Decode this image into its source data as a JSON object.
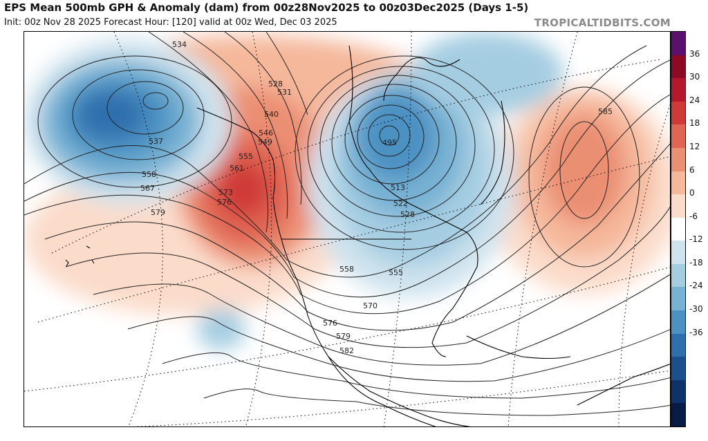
{
  "header": {
    "title": "EPS Mean 500mb GPH & Anomaly (dam) from 00z28Nov2025 to 00z03Dec2025 (Days 1-5)",
    "subtitle": "Init: 00z Nov 28 2025   Forecast Hour: [120]   valid at 00z Wed, Dec 03 2025",
    "brand": "TROPICALTIDBITS.COM"
  },
  "colorbar": {
    "labels": [
      "36",
      "30",
      "24",
      "18",
      "12",
      "6",
      "0",
      "-6",
      "-12",
      "-18",
      "-24",
      "-30",
      "-36"
    ],
    "colors": [
      "#5b0f6e",
      "#8e0a24",
      "#b5182c",
      "#cf3a39",
      "#e06553",
      "#eb8f73",
      "#f5b89b",
      "#fbdccb",
      "#ffffff",
      "#cfe3ee",
      "#a5cde2",
      "#77b1d3",
      "#4b91c2",
      "#2e6fad",
      "#1b4f8d",
      "#0e326a",
      "#061c47"
    ]
  },
  "contour_labels": [
    {
      "text": "534"
    },
    {
      "text": "528"
    },
    {
      "text": "531"
    },
    {
      "text": "540"
    },
    {
      "text": "546"
    },
    {
      "text": "549"
    },
    {
      "text": "555"
    },
    {
      "text": "561"
    },
    {
      "text": "573"
    },
    {
      "text": "576"
    },
    {
      "text": "579"
    },
    {
      "text": "537"
    },
    {
      "text": "558"
    },
    {
      "text": "567"
    },
    {
      "text": "495"
    },
    {
      "text": "513"
    },
    {
      "text": "522"
    },
    {
      "text": "528"
    },
    {
      "text": "558"
    },
    {
      "text": "555"
    },
    {
      "text": "570"
    },
    {
      "text": "576"
    },
    {
      "text": "579"
    },
    {
      "text": "582"
    },
    {
      "text": "585"
    }
  ]
}
